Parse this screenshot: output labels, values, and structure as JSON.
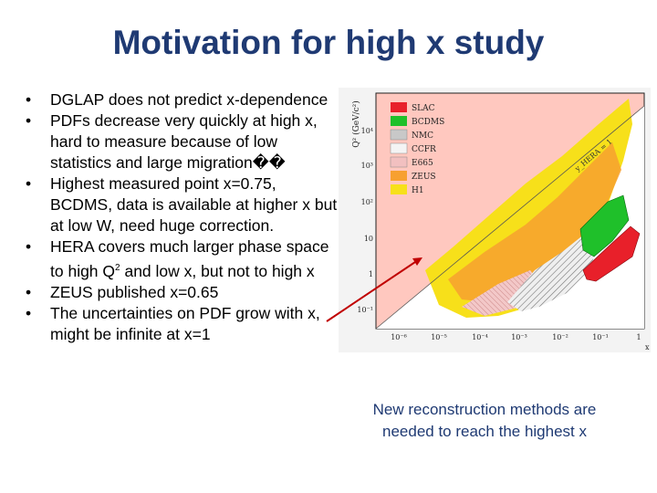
{
  "title": "Motivation for high x study",
  "bullets": [
    {
      "text": "DGLAP does not predict x-dependence"
    },
    {
      "text": "PDFs decrease very quickly at high x, hard to measure because of low statistics and large migration��"
    },
    {
      "text": "Highest measured point x=0.75, BCDMS, data is available at higher x but at low W, need huge correction."
    },
    {
      "pre": "HERA covers much larger phase space to high Q",
      "sup": "2",
      "post": " and low x, but not to high x"
    },
    {
      "text": "ZEUS published x=0.65"
    },
    {
      "text": "The uncertainties on PDF grow with x, might be infinite at x=1"
    }
  ],
  "caption": "New reconstruction methods are needed to reach the highest x",
  "plot": {
    "ylabel": "Q² (GeV/c²)",
    "xlabel": "x",
    "yticks": [
      "10⁴",
      "10³",
      "10²",
      "10",
      "1",
      "10⁻¹"
    ],
    "xticks": [
      "10⁻⁶",
      "10⁻⁵",
      "10⁻⁴",
      "10⁻³",
      "10⁻²",
      "10⁻¹",
      "1"
    ],
    "diag_label": "y_HERA = 1",
    "legend": [
      {
        "name": "SLAC",
        "color": "#e8202a"
      },
      {
        "name": "BCDMS",
        "color": "#1fc02a"
      },
      {
        "name": "NMC",
        "color": "#c8c8c8"
      },
      {
        "name": "CCFR",
        "color": "#f4f4f4"
      },
      {
        "name": "E665",
        "color": "#f2c0c0"
      },
      {
        "name": "ZEUS",
        "color": "#f7a030"
      },
      {
        "name": "H1",
        "color": "#f7e01a"
      }
    ]
  },
  "colors": {
    "title": "#1f3a73",
    "arrow": "#c00000",
    "plot_bg": "#ffc8bf"
  }
}
